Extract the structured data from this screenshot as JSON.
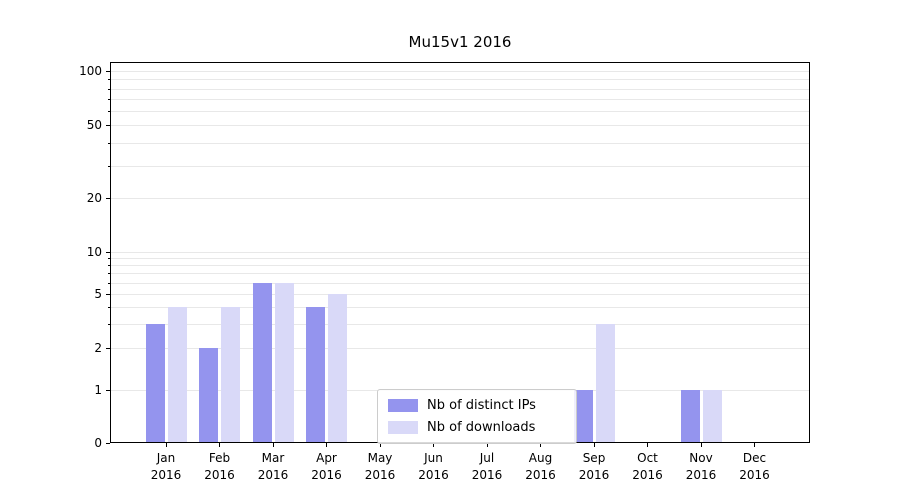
{
  "chart_data": {
    "type": "bar",
    "title": "Mu15v1 2016",
    "scale": "symlog",
    "categories": [
      "Jan 2016",
      "Feb 2016",
      "Mar 2016",
      "Apr 2016",
      "May 2016",
      "Jun 2016",
      "Jul 2016",
      "Aug 2016",
      "Sep 2016",
      "Oct 2016",
      "Nov 2016",
      "Dec 2016"
    ],
    "series": [
      {
        "name": "Nb of distinct IPs",
        "color": "#9494ee",
        "values": [
          3,
          2,
          6,
          4,
          0,
          0,
          0,
          0,
          1,
          0,
          1,
          0
        ]
      },
      {
        "name": "Nb of downloads",
        "color": "#d9d9f8",
        "values": [
          4,
          4,
          6,
          5,
          0,
          0,
          0,
          0,
          3,
          0,
          1,
          0
        ]
      }
    ],
    "yticks": [
      0,
      1,
      2,
      5,
      10,
      20,
      50,
      100
    ],
    "ylim": [
      0,
      112
    ],
    "grid": "horizontal",
    "legend_position": "lower-center"
  }
}
